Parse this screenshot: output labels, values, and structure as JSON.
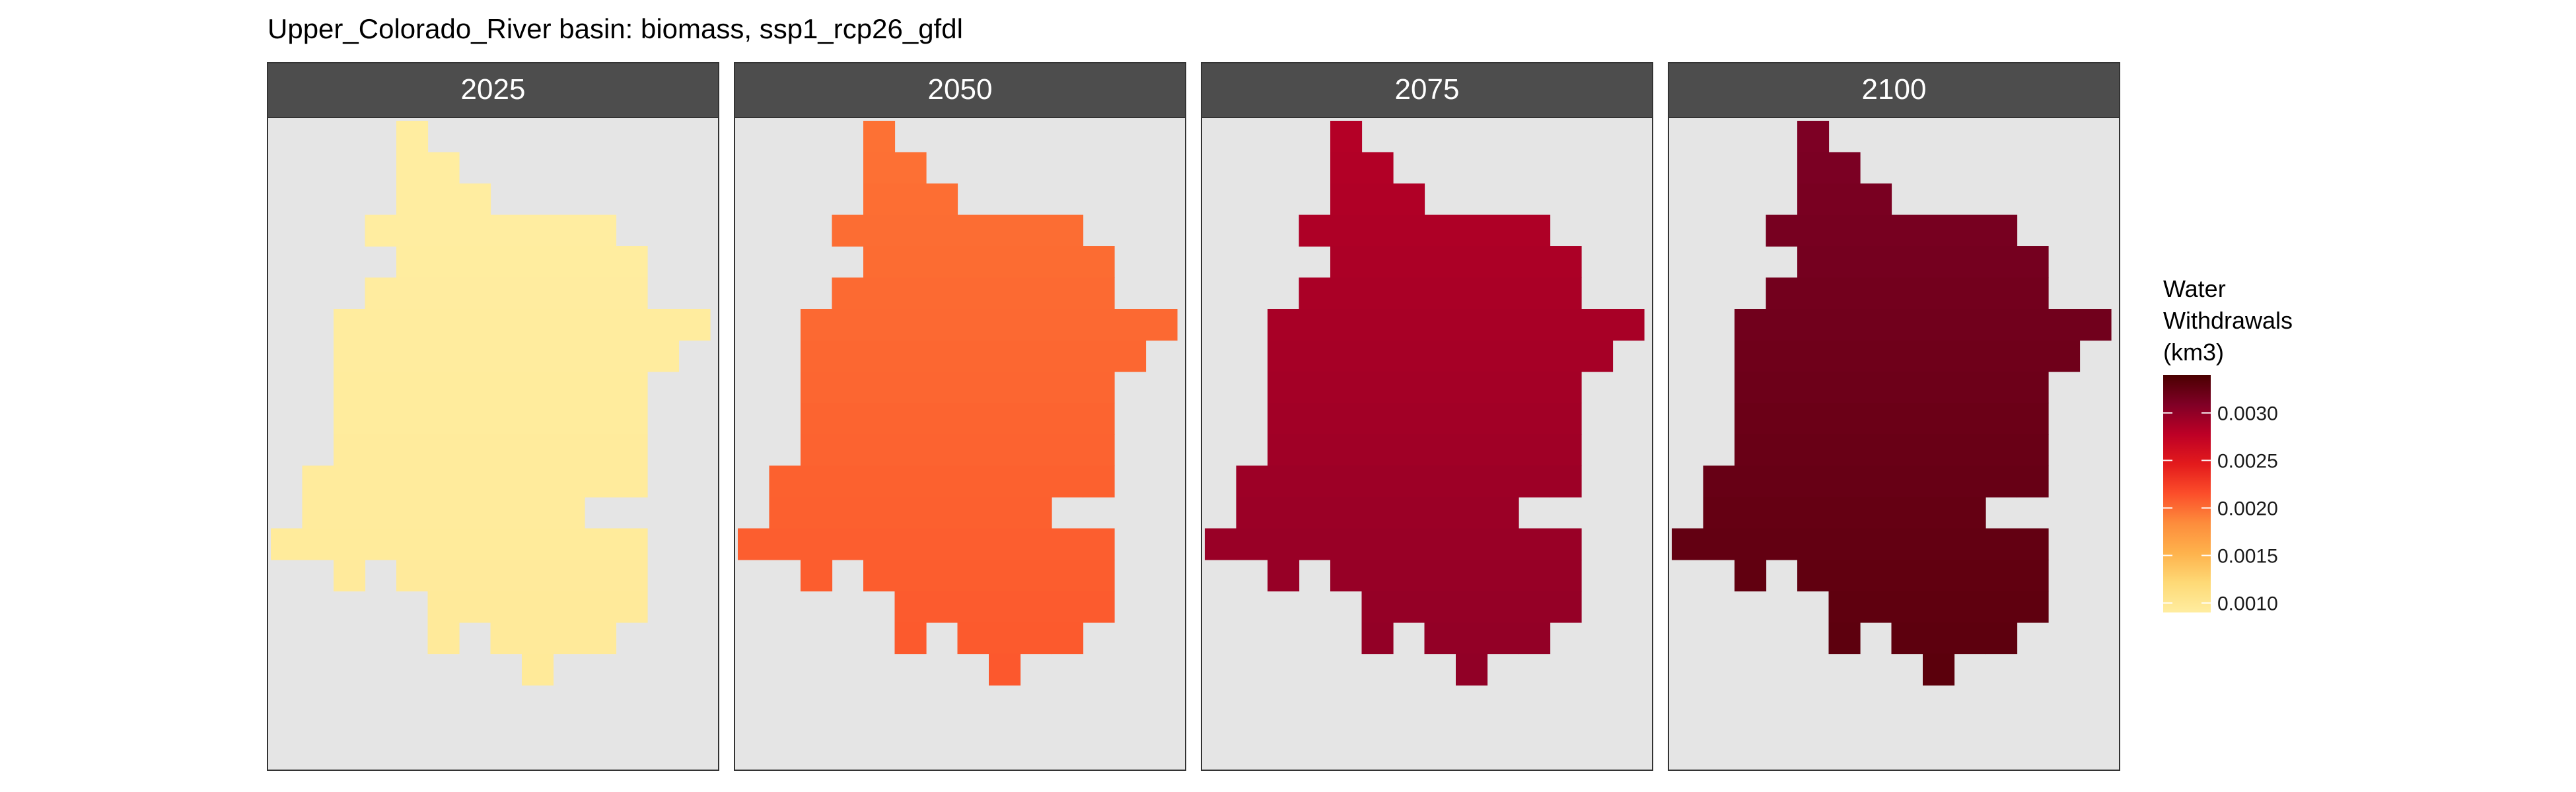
{
  "chart_data": {
    "type": "heatmap",
    "title": "Upper_Colorado_River basin: biomass, ssp1_rcp26_gfdl",
    "facets": [
      "2025",
      "2050",
      "2075",
      "2100"
    ],
    "facet_values": {
      "2025": 0.00095,
      "2050": 0.0021,
      "2075": 0.003,
      "2100": 0.0033
    },
    "grid_cells": [
      [
        4,
        0
      ],
      [
        4,
        1
      ],
      [
        5,
        1
      ],
      [
        4,
        2
      ],
      [
        5,
        2
      ],
      [
        6,
        2
      ],
      [
        3,
        3
      ],
      [
        4,
        3
      ],
      [
        5,
        3
      ],
      [
        6,
        3
      ],
      [
        7,
        3
      ],
      [
        8,
        3
      ],
      [
        9,
        3
      ],
      [
        10,
        3
      ],
      [
        4,
        4
      ],
      [
        5,
        4
      ],
      [
        6,
        4
      ],
      [
        7,
        4
      ],
      [
        8,
        4
      ],
      [
        9,
        4
      ],
      [
        10,
        4
      ],
      [
        11,
        4
      ],
      [
        3,
        5
      ],
      [
        4,
        5
      ],
      [
        5,
        5
      ],
      [
        6,
        5
      ],
      [
        7,
        5
      ],
      [
        8,
        5
      ],
      [
        9,
        5
      ],
      [
        10,
        5
      ],
      [
        11,
        5
      ],
      [
        2,
        6
      ],
      [
        3,
        6
      ],
      [
        4,
        6
      ],
      [
        5,
        6
      ],
      [
        6,
        6
      ],
      [
        7,
        6
      ],
      [
        8,
        6
      ],
      [
        9,
        6
      ],
      [
        10,
        6
      ],
      [
        11,
        6
      ],
      [
        12,
        6
      ],
      [
        13,
        6
      ],
      [
        2,
        7
      ],
      [
        3,
        7
      ],
      [
        4,
        7
      ],
      [
        5,
        7
      ],
      [
        6,
        7
      ],
      [
        7,
        7
      ],
      [
        8,
        7
      ],
      [
        9,
        7
      ],
      [
        10,
        7
      ],
      [
        11,
        7
      ],
      [
        12,
        7
      ],
      [
        2,
        8
      ],
      [
        3,
        8
      ],
      [
        4,
        8
      ],
      [
        5,
        8
      ],
      [
        6,
        8
      ],
      [
        7,
        8
      ],
      [
        8,
        8
      ],
      [
        9,
        8
      ],
      [
        10,
        8
      ],
      [
        11,
        8
      ],
      [
        2,
        9
      ],
      [
        3,
        9
      ],
      [
        4,
        9
      ],
      [
        5,
        9
      ],
      [
        6,
        9
      ],
      [
        7,
        9
      ],
      [
        8,
        9
      ],
      [
        9,
        9
      ],
      [
        10,
        9
      ],
      [
        11,
        9
      ],
      [
        2,
        10
      ],
      [
        3,
        10
      ],
      [
        4,
        10
      ],
      [
        5,
        10
      ],
      [
        6,
        10
      ],
      [
        7,
        10
      ],
      [
        8,
        10
      ],
      [
        9,
        10
      ],
      [
        10,
        10
      ],
      [
        11,
        10
      ],
      [
        1,
        11
      ],
      [
        2,
        11
      ],
      [
        3,
        11
      ],
      [
        4,
        11
      ],
      [
        5,
        11
      ],
      [
        6,
        11
      ],
      [
        7,
        11
      ],
      [
        8,
        11
      ],
      [
        9,
        11
      ],
      [
        10,
        11
      ],
      [
        11,
        11
      ],
      [
        1,
        12
      ],
      [
        2,
        12
      ],
      [
        3,
        12
      ],
      [
        4,
        12
      ],
      [
        5,
        12
      ],
      [
        6,
        12
      ],
      [
        7,
        12
      ],
      [
        8,
        12
      ],
      [
        9,
        12
      ],
      [
        0,
        13
      ],
      [
        1,
        13
      ],
      [
        2,
        13
      ],
      [
        3,
        13
      ],
      [
        4,
        13
      ],
      [
        5,
        13
      ],
      [
        6,
        13
      ],
      [
        7,
        13
      ],
      [
        8,
        13
      ],
      [
        9,
        13
      ],
      [
        10,
        13
      ],
      [
        11,
        13
      ],
      [
        2,
        14
      ],
      [
        4,
        14
      ],
      [
        5,
        14
      ],
      [
        6,
        14
      ],
      [
        7,
        14
      ],
      [
        8,
        14
      ],
      [
        9,
        14
      ],
      [
        10,
        14
      ],
      [
        11,
        14
      ],
      [
        5,
        15
      ],
      [
        6,
        15
      ],
      [
        7,
        15
      ],
      [
        8,
        15
      ],
      [
        9,
        15
      ],
      [
        10,
        15
      ],
      [
        11,
        15
      ],
      [
        5,
        16
      ],
      [
        7,
        16
      ],
      [
        8,
        16
      ],
      [
        9,
        16
      ],
      [
        10,
        16
      ],
      [
        8,
        17
      ]
    ],
    "legend": {
      "title_lines": [
        "Water",
        "Withdrawals",
        "(km3)"
      ],
      "ticks": [
        {
          "value": 0.001,
          "label": "0.0010"
        },
        {
          "value": 0.0015,
          "label": "0.0015"
        },
        {
          "value": 0.002,
          "label": "0.0020"
        },
        {
          "value": 0.0025,
          "label": "0.0025"
        },
        {
          "value": 0.003,
          "label": "0.0030"
        }
      ],
      "range": [
        0.0009,
        0.0034
      ],
      "placement": "right"
    },
    "grid": false,
    "colors": {
      "scale": [
        "#FFEDA0",
        "#FED976",
        "#FEB24C",
        "#FD8D3C",
        "#FC4E2A",
        "#E31A1C",
        "#BD0026",
        "#800026",
        "#4A0000"
      ],
      "panel_background": "#E5E5E5",
      "strip_background": "#4D4D4D",
      "strip_text": "#FFFFFF"
    }
  }
}
